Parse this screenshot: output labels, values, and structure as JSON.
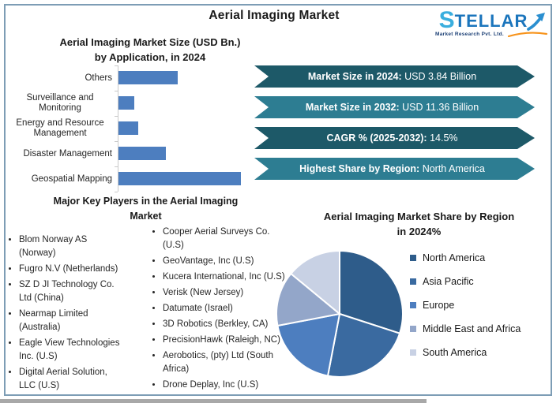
{
  "header": {
    "title": "Aerial Imaging Market"
  },
  "logo": {
    "brand": "STELLAR",
    "brand_initial": "S",
    "brand_rest": "TELLAR",
    "tagline": "Market Research Pvt. Ltd.",
    "brand_color": "#1b75bc",
    "accent_color": "#3aaede",
    "swoosh_color": "#f7941d"
  },
  "banners": {
    "items": [
      {
        "label": "Market Size in 2024:",
        "value": "USD 3.84 Billion",
        "color": "#1d5968"
      },
      {
        "label": "Market Size in 2032:",
        "value": "USD 11.36 Billion",
        "color": "#2d7d92"
      },
      {
        "label": "CAGR % (2025-2032):",
        "value": "14.5%",
        "color": "#1d5968"
      },
      {
        "label": "Highest Share by Region:",
        "value": "North America",
        "color": "#2d7d92"
      }
    ]
  },
  "bar_chart": {
    "title_line1": "Aerial Imaging Market Size (USD Bn.)",
    "title_line2": "by Application, in 2024"
  },
  "pie_chart": {
    "title_line1": "Aerial Imaging Market Share by Region",
    "title_line2": "in 2024%"
  },
  "key_players": {
    "heading_line1": "Major Key Players in the Aerial Imaging",
    "heading_line2": "Market",
    "column_1": [
      "Blom Norway AS\n(Norway)",
      "Fugro N.V (Netherlands)",
      "SZ D JI Technology Co.\nLtd (China)",
      "Nearmap Limited\n(Australia)",
      "Eagle View Technologies\nInc. (U.S)",
      "Digital Aerial Solution,\nLLC (U.S)"
    ],
    "column_2": [
      "Cooper Aerial Surveys Co.\n(U.S)",
      "GeoVantage, Inc (U.S)",
      "Kucera International, Inc (U.S)",
      "Verisk (New Jersey)",
      "Datumate (Israel)",
      "3D Robotics (Berkley, CA)",
      "PrecisionHawk (Raleigh, NC)",
      "Aerobotics, (pty) Ltd (South\nAfrica)",
      "Drone Deplay, Inc (U.S)"
    ]
  },
  "chart_data": [
    {
      "type": "bar",
      "orientation": "horizontal",
      "title": "Aerial Imaging Market Size (USD Bn.) by Application, in 2024",
      "categories": [
        "Others",
        "Surveillance and Monitoring",
        "Energy and Resource Management",
        "Disaster Management",
        "Geospatial Mapping"
      ],
      "values": [
        0.75,
        0.2,
        0.25,
        0.6,
        1.55
      ],
      "values_note": "USD Bn, estimated from bar lengths; no axis tick labels shown",
      "xlabel": "",
      "ylabel": "",
      "xlim": [
        0,
        1.7
      ],
      "grid": false,
      "bar_color": "#4d7ebf"
    },
    {
      "type": "pie",
      "title": "Aerial Imaging Market Share by Region in 2024%",
      "labels": [
        "North America",
        "Asia Pacific",
        "Europe",
        "Middle East and Africa",
        "South America"
      ],
      "values": [
        30,
        23,
        19,
        14,
        14
      ],
      "values_note": "percent share estimated from slice angles; no data labels shown",
      "colors": [
        "#2e5c8a",
        "#3a6aa0",
        "#4d7ebf",
        "#93a6c9",
        "#c8d1e4"
      ],
      "legend_position": "right",
      "start_angle": "12 o'clock, clockwise"
    }
  ]
}
